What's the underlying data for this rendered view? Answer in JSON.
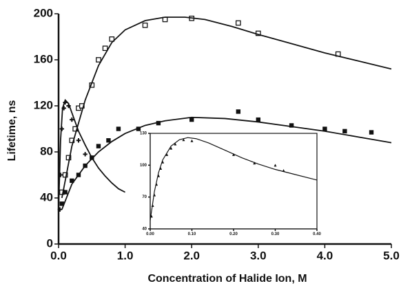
{
  "chart_data": [
    {
      "type": "scatter",
      "xlabel": "Concentration of Halide Ion, M",
      "ylabel": "Lifetime, ns",
      "xlim": [
        0,
        5
      ],
      "ylim": [
        0,
        200
      ],
      "xticks": [
        {
          "value": 0,
          "label": "0.0"
        },
        {
          "value": 1,
          "label": "1.0"
        },
        {
          "value": 2,
          "label": "2.0"
        },
        {
          "value": 3,
          "label": "3.0"
        },
        {
          "value": 4,
          "label": "4.0"
        },
        {
          "value": 5,
          "label": "5.0"
        }
      ],
      "yticks": [
        0,
        40,
        80,
        120,
        160,
        200
      ],
      "series": [
        {
          "marker": "open-square",
          "color": "#111111",
          "x": [
            0.05,
            0.1,
            0.15,
            0.2,
            0.25,
            0.3,
            0.35,
            0.5,
            0.6,
            0.7,
            0.8,
            1.3,
            1.6,
            2.0,
            2.7,
            3.0,
            4.2
          ],
          "values": [
            45,
            60,
            75,
            90,
            100,
            118,
            120,
            138,
            160,
            170,
            178,
            190,
            195,
            196,
            192,
            183,
            165
          ]
        },
        {
          "marker": "filled-square",
          "color": "#111111",
          "x": [
            0.05,
            0.1,
            0.2,
            0.3,
            0.4,
            0.5,
            0.6,
            0.75,
            0.9,
            1.2,
            1.5,
            2.0,
            2.7,
            3.0,
            3.5,
            4.0,
            4.3,
            4.7
          ],
          "values": [
            35,
            45,
            55,
            60,
            68,
            75,
            85,
            90,
            100,
            100,
            105,
            108,
            115,
            108,
            103,
            100,
            98,
            97
          ]
        },
        {
          "marker": "cross",
          "color": "#111111",
          "x": [
            0.02,
            0.03,
            0.05,
            0.08,
            0.1,
            0.15,
            0.2,
            0.3,
            0.4
          ],
          "values": [
            30,
            60,
            100,
            118,
            123,
            120,
            108,
            90,
            78
          ]
        },
        {
          "marker": "line",
          "color": "#111111",
          "x": [
            0.05,
            0.2,
            0.4,
            0.6,
            0.8,
            1.0,
            1.3,
            1.6,
            1.9,
            2.2,
            2.6,
            3.0,
            3.5,
            4.0,
            4.5,
            5.0
          ],
          "values": [
            40,
            85,
            125,
            155,
            175,
            186,
            194,
            197,
            197,
            195,
            189,
            182,
            174,
            166,
            159,
            152
          ]
        },
        {
          "marker": "line",
          "color": "#111111",
          "x": [
            0.05,
            0.2,
            0.4,
            0.6,
            0.8,
            1.0,
            1.3,
            1.6,
            2.0,
            2.5,
            3.0,
            3.5,
            4.0,
            4.5,
            5.0
          ],
          "values": [
            30,
            52,
            68,
            80,
            89,
            96,
            103,
            107,
            110,
            109,
            106,
            102,
            98,
            93,
            88
          ]
        },
        {
          "marker": "line",
          "color": "#111111",
          "x": [
            0.0,
            0.03,
            0.06,
            0.1,
            0.15,
            0.2,
            0.3,
            0.4,
            0.5,
            0.6,
            0.7,
            0.8,
            0.9,
            1.0
          ],
          "values": [
            30,
            90,
            118,
            125,
            122,
            114,
            98,
            86,
            75,
            66,
            59,
            53,
            48,
            45
          ]
        }
      ]
    },
    {
      "type": "scatter",
      "xlim": [
        0,
        0.4
      ],
      "ylim": [
        40,
        130
      ],
      "xticks": [
        {
          "value": 0,
          "label": "0.00"
        },
        {
          "value": 0.1,
          "label": "0.10"
        },
        {
          "value": 0.2,
          "label": "0.20"
        },
        {
          "value": 0.3,
          "label": "0.30"
        },
        {
          "value": 0.4,
          "label": "0.40"
        }
      ],
      "yticks": [
        40,
        70,
        100,
        130
      ],
      "series": [
        {
          "marker": "triangle",
          "color": "#111111",
          "x": [
            0.003,
            0.006,
            0.01,
            0.015,
            0.02,
            0.025,
            0.03,
            0.04,
            0.05,
            0.06,
            0.08,
            0.1,
            0.2,
            0.25,
            0.3,
            0.32
          ],
          "values": [
            52,
            62,
            72,
            82,
            90,
            97,
            103,
            110,
            116,
            120,
            124,
            123,
            110,
            102,
            100,
            95
          ]
        },
        {
          "marker": "line",
          "color": "#111111",
          "x": [
            0.0,
            0.01,
            0.02,
            0.03,
            0.05,
            0.07,
            0.09,
            0.11,
            0.14,
            0.18,
            0.22,
            0.26,
            0.3,
            0.35,
            0.4
          ],
          "values": [
            48,
            75,
            93,
            105,
            118,
            124,
            126,
            125,
            121,
            114,
            107,
            101,
            96,
            91,
            86
          ]
        }
      ]
    }
  ]
}
